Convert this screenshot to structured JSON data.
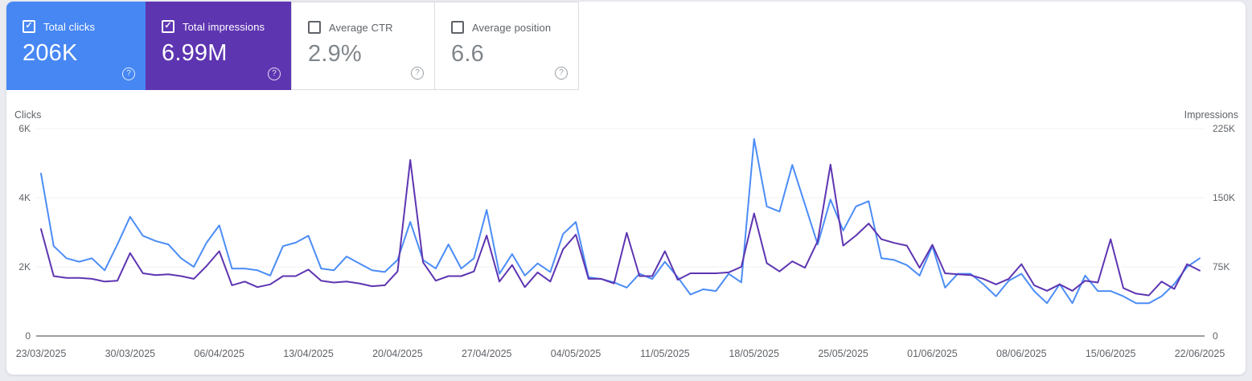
{
  "cards": [
    {
      "label": "Total clicks",
      "value": "206K",
      "checked": true,
      "color": "#4687f4"
    },
    {
      "label": "Total impressions",
      "value": "6.99M",
      "checked": true,
      "color": "#5e35b1"
    },
    {
      "label": "Average CTR",
      "value": "2.9%",
      "checked": false,
      "color": "#ffffff"
    },
    {
      "label": "Average position",
      "value": "6.6",
      "checked": false,
      "color": "#ffffff"
    }
  ],
  "icons": {
    "checkbox_checked": "check-mark",
    "help": "question-mark-circle"
  },
  "colors": {
    "clicks_line": "#4c8df6",
    "impressions_line": "#5e35b1",
    "clicks_card_bg": "#4687f4",
    "impressions_card_bg": "#5e35b1",
    "axis_text": "#5f6368",
    "gridline": "#f0f1f2",
    "baseline": "#9e9e9e",
    "page_bg": "#e9ebf1",
    "panel_bg": "#ffffff"
  },
  "chart_data": {
    "type": "line",
    "title": "",
    "grid": "horizontal-only",
    "legend_position": "none",
    "start_date": "23/03/2025",
    "end_date": "22/06/2025",
    "x_tick_labels": [
      "23/03/2025",
      "30/03/2025",
      "06/04/2025",
      "13/04/2025",
      "20/04/2025",
      "27/04/2025",
      "04/05/2025",
      "11/05/2025",
      "18/05/2025",
      "25/05/2025",
      "01/06/2025",
      "08/06/2025",
      "15/06/2025",
      "22/06/2025"
    ],
    "left_axis": {
      "title": "Clicks",
      "ticks": [
        "6K",
        "4K",
        "2K",
        "0"
      ],
      "min": 0,
      "max": 6000
    },
    "right_axis": {
      "title": "Impressions",
      "ticks": [
        "225K",
        "150K",
        "75K",
        "0"
      ],
      "min": 0,
      "max": 225000
    },
    "series": [
      {
        "name": "Clicks",
        "axis": "left",
        "color": "#4c8df6",
        "values": [
          4700,
          2600,
          2250,
          2150,
          2250,
          1900,
          2650,
          3450,
          2900,
          2750,
          2650,
          2250,
          2000,
          2700,
          3200,
          1950,
          1950,
          1900,
          1750,
          2600,
          2700,
          2900,
          1950,
          1900,
          2300,
          2100,
          1900,
          1850,
          2200,
          3300,
          2200,
          1950,
          2650,
          1950,
          2250,
          3650,
          1800,
          2370,
          1750,
          2100,
          1850,
          2950,
          3300,
          1700,
          1650,
          1550,
          1400,
          1800,
          1650,
          2150,
          1700,
          1200,
          1350,
          1300,
          1800,
          1550,
          5700,
          3750,
          3600,
          4950,
          3800,
          2650,
          3950,
          3050,
          3750,
          3900,
          2250,
          2200,
          2050,
          1750,
          2600,
          1400,
          1800,
          1800,
          1500,
          1150,
          1600,
          1800,
          1300,
          950,
          1500,
          950,
          1750,
          1300,
          1300,
          1150,
          950,
          950,
          1150,
          1500,
          2000,
          2250
        ]
      },
      {
        "name": "Impressions",
        "axis": "right",
        "color": "#5e35b1",
        "values": [
          116000,
          65000,
          63000,
          63000,
          62000,
          59000,
          60000,
          90000,
          68000,
          66000,
          67000,
          65000,
          62000,
          76000,
          92000,
          55000,
          59000,
          53000,
          56000,
          65000,
          65000,
          72000,
          60000,
          58000,
          59000,
          57000,
          54000,
          55000,
          70000,
          191000,
          80000,
          60000,
          65000,
          65000,
          70000,
          109000,
          59000,
          77000,
          53000,
          69000,
          59000,
          94000,
          110000,
          62000,
          62000,
          57000,
          112000,
          65000,
          65000,
          92000,
          61000,
          68000,
          68000,
          68000,
          69000,
          75000,
          133000,
          79000,
          70000,
          81000,
          74000,
          103000,
          186000,
          98000,
          109000,
          122000,
          105000,
          101000,
          98000,
          74000,
          99000,
          68000,
          67000,
          66000,
          62000,
          56000,
          62000,
          78000,
          55000,
          49000,
          56000,
          49000,
          60000,
          58000,
          105000,
          52000,
          46000,
          44000,
          59000,
          51000,
          78000,
          71000
        ]
      }
    ]
  }
}
